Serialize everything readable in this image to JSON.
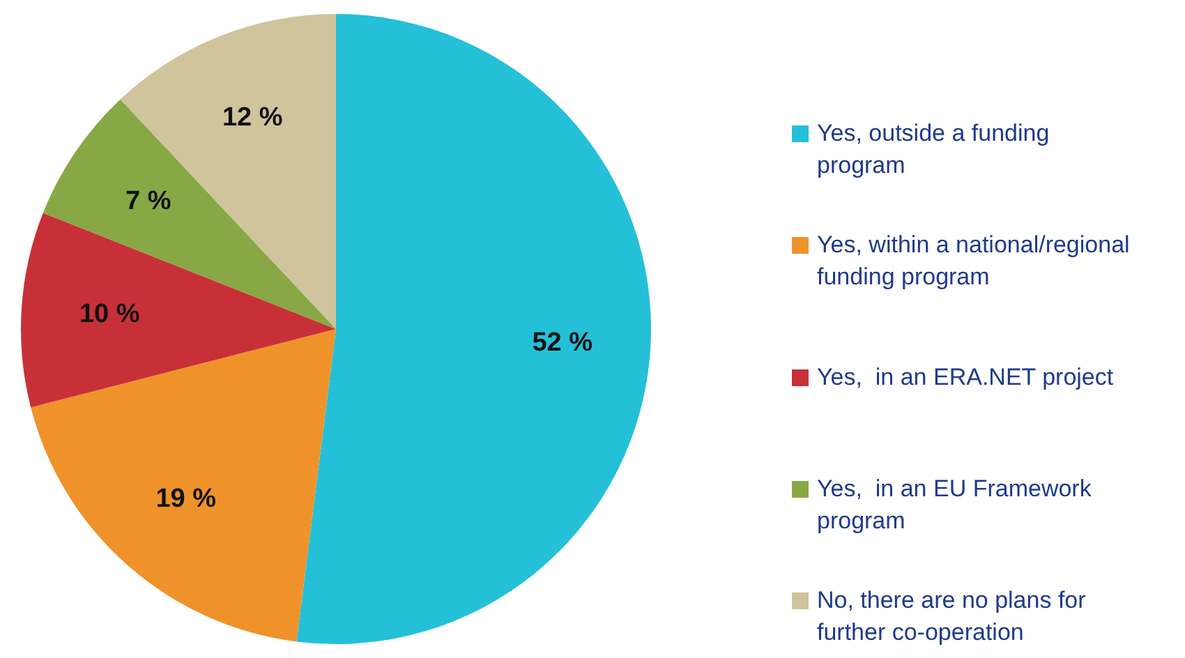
{
  "chart_data": {
    "type": "pie",
    "categories": [
      "Yes, outside a funding program",
      "Yes, within a national/regional funding program",
      "Yes,  in an ERA.NET project",
      "Yes,  in an EU Framework program",
      "No, there are no plans for further co-operation"
    ],
    "values": [
      52,
      19,
      10,
      7,
      12
    ],
    "colors": [
      "#24c0d8",
      "#f0922a",
      "#c83038",
      "#88a845",
      "#cfc49c"
    ],
    "value_labels": [
      "52 %",
      "19 %",
      "10 %",
      "7 %",
      "12 %"
    ],
    "legend": "right"
  }
}
